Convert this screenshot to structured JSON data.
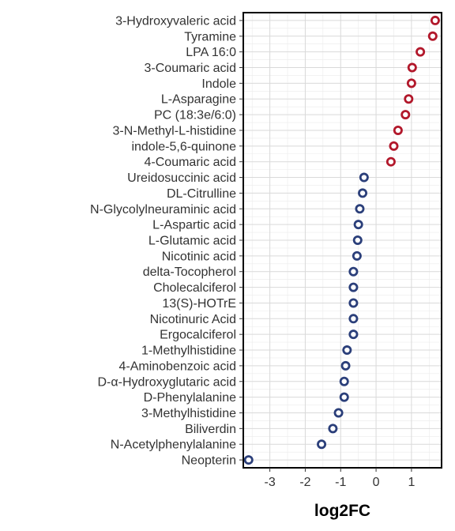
{
  "chart_data": {
    "type": "scatter",
    "xlabel": "log2FC",
    "ylabel": "",
    "xlim": [
      -3.75,
      1.85
    ],
    "x_ticks": [
      -3,
      -2,
      -1,
      0,
      1
    ],
    "x_tick_labels": [
      "-3",
      "-2",
      "-1",
      "0",
      "1"
    ],
    "grid": true,
    "legend": "none",
    "colors": {
      "up": "#b2182b",
      "down": "#2b3f7a"
    },
    "categories": [
      "3-Hydroxyvaleric acid",
      "Tyramine",
      "LPA 16:0",
      "3-Coumaric acid",
      "Indole",
      "L-Asparagine",
      "PC (18:3e/6:0)",
      "3-N-Methyl-L-histidine",
      "indole-5,6-quinone",
      "4-Coumaric acid",
      "Ureidosuccinic acid",
      "DL-Citrulline",
      "N-Glycolylneuraminic acid",
      "L-Aspartic acid",
      "L-Glutamic acid",
      "Nicotinic acid",
      "delta-Tocopherol",
      "Cholecalciferol",
      "13(S)-HOTrE",
      "Nicotinuric Acid",
      "Ergocalciferol",
      "1-Methylhistidine",
      "4-Aminobenzoic acid",
      "D-α-Hydroxyglutaric acid",
      "D-Phenylalanine",
      "3-Methylhistidine",
      "Biliverdin",
      "N-Acetylphenylalanine",
      "Neopterin"
    ],
    "values": [
      1.67,
      1.6,
      1.25,
      1.02,
      1.0,
      0.92,
      0.83,
      0.62,
      0.5,
      0.42,
      -0.34,
      -0.38,
      -0.46,
      -0.5,
      -0.52,
      -0.54,
      -0.64,
      -0.64,
      -0.64,
      -0.64,
      -0.64,
      -0.82,
      -0.86,
      -0.9,
      -0.9,
      -1.06,
      -1.22,
      -1.54,
      -3.6
    ]
  }
}
